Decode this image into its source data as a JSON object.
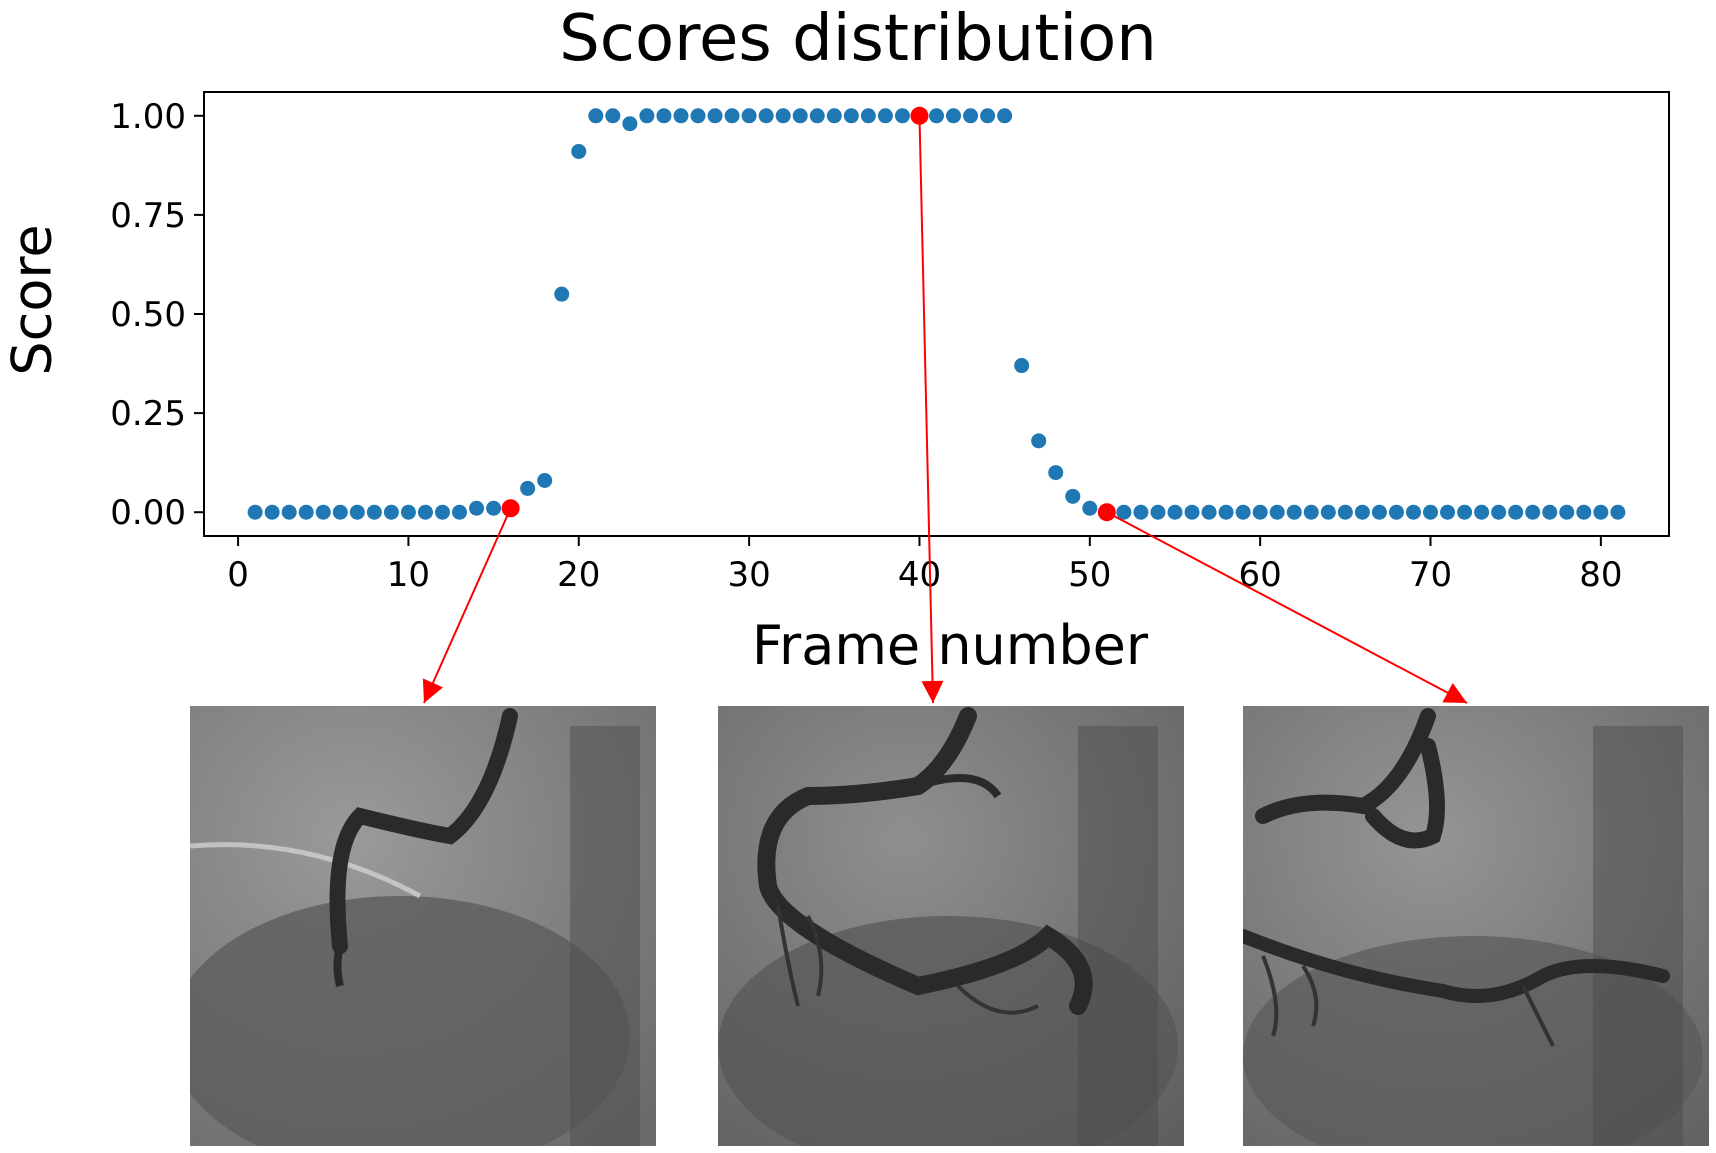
{
  "chart_data": {
    "type": "scatter",
    "title": "Scores distribution",
    "xlabel": "Frame number",
    "ylabel": "Score",
    "xlim": [
      -2,
      84
    ],
    "ylim": [
      -0.06,
      1.06
    ],
    "xticks": [
      0,
      10,
      20,
      30,
      40,
      50,
      60,
      70,
      80
    ],
    "yticks": [
      0.0,
      0.25,
      0.5,
      0.75,
      1.0
    ],
    "ytick_labels": [
      "0.00",
      "0.25",
      "0.50",
      "0.75",
      "1.00"
    ],
    "grid": false,
    "marker_color": "#1f77b4",
    "highlight_color": "#ff0000",
    "series": [
      {
        "x": [
          1,
          2,
          3,
          4,
          5,
          6,
          7,
          8,
          9,
          10,
          11,
          12,
          13,
          14,
          15,
          16,
          17,
          18,
          19,
          20,
          21,
          22,
          23,
          24,
          25,
          26,
          27,
          28,
          29,
          30,
          31,
          32,
          33,
          34,
          35,
          36,
          37,
          38,
          39,
          40,
          41,
          42,
          43,
          44,
          45,
          46,
          47,
          48,
          49,
          50,
          51,
          52,
          53,
          54,
          55,
          56,
          57,
          58,
          59,
          60,
          61,
          62,
          63,
          64,
          65,
          66,
          67,
          68,
          69,
          70,
          71,
          72,
          73,
          74,
          75,
          76,
          77,
          78,
          79,
          80,
          81
        ],
        "y": [
          0,
          0,
          0,
          0,
          0,
          0,
          0,
          0,
          0,
          0,
          0,
          0,
          0,
          0.01,
          0.01,
          0.01,
          0.06,
          0.08,
          0.55,
          0.91,
          1,
          1,
          0.98,
          1,
          1,
          1,
          1,
          1,
          1,
          1,
          1,
          1,
          1,
          1,
          1,
          1,
          1,
          1,
          1,
          1,
          1,
          1,
          1,
          1,
          1,
          0.37,
          0.18,
          0.1,
          0.04,
          0.01,
          0,
          0,
          0,
          0,
          0,
          0,
          0,
          0,
          0,
          0,
          0,
          0,
          0,
          0,
          0,
          0,
          0,
          0,
          0,
          0,
          0,
          0,
          0,
          0,
          0,
          0,
          0,
          0,
          0,
          0,
          0
        ]
      }
    ],
    "highlighted_points": [
      {
        "x": 16,
        "y": 0.01
      },
      {
        "x": 40,
        "y": 1.0
      },
      {
        "x": 51,
        "y": 0.0
      }
    ]
  },
  "images": [
    {
      "name": "angiogram-frame-16"
    },
    {
      "name": "angiogram-frame-40"
    },
    {
      "name": "angiogram-frame-51"
    }
  ]
}
